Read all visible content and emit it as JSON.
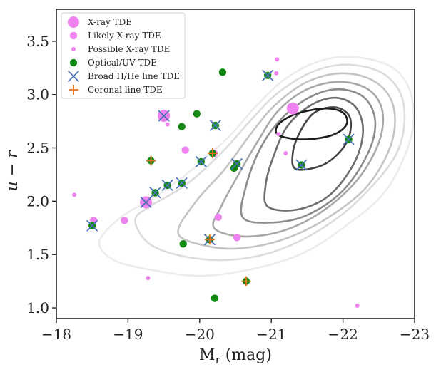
{
  "chart_data": {
    "type": "scatter",
    "title": "",
    "xlabel": "M_r (mag)",
    "xlabel_main": "M",
    "xlabel_sub": "r",
    "xlabel_unit": " (mag)",
    "ylabel": "u − r",
    "xlim": [
      -18,
      -23
    ],
    "ylim": [
      0.9,
      3.8
    ],
    "x_ticks": [
      -18,
      -19,
      -20,
      -21,
      -22,
      -23
    ],
    "x_tick_labels": [
      "−18",
      "−19",
      "−20",
      "−21",
      "−22",
      "−23"
    ],
    "y_ticks": [
      1.0,
      1.5,
      2.0,
      2.5,
      3.0,
      3.5
    ],
    "y_tick_labels": [
      "1.0",
      "1.5",
      "2.0",
      "2.5",
      "3.0",
      "3.5"
    ],
    "grid": false,
    "legend_position": "top-left",
    "colors": {
      "xray": "#ee82ee",
      "optical": "#118811",
      "broad": "#4a72b8",
      "coronal": "#e07020"
    },
    "legend": [
      {
        "label": "X-ray TDE",
        "marker": "circle-large",
        "color": "#ee82ee"
      },
      {
        "label": "Likely X-ray TDE",
        "marker": "circle-medium",
        "color": "#ee82ee"
      },
      {
        "label": "Possible X-ray TDE",
        "marker": "circle-small",
        "color": "#ee82ee"
      },
      {
        "label": "Optical/UV TDE",
        "marker": "circle-medium",
        "color": "#118811"
      },
      {
        "label": "Broad H/He line TDE",
        "marker": "x",
        "color": "#4a72b8"
      },
      {
        "label": "Coronal line TDE",
        "marker": "plus",
        "color": "#e07020"
      }
    ],
    "series": [
      {
        "name": "X-ray TDE",
        "points": [
          [
            -19.25,
            1.99
          ],
          [
            -19.5,
            2.8
          ],
          [
            -21.3,
            2.87
          ]
        ]
      },
      {
        "name": "Likely X-ray TDE",
        "points": [
          [
            -18.52,
            1.82
          ],
          [
            -18.95,
            1.82
          ],
          [
            -19.8,
            2.48
          ],
          [
            -20.26,
            1.85
          ],
          [
            -20.52,
            1.66
          ],
          [
            -20.2,
            2.45
          ]
        ]
      },
      {
        "name": "Possible X-ray TDE",
        "points": [
          [
            -18.25,
            2.06
          ],
          [
            -19.28,
            1.28
          ],
          [
            -19.55,
            2.72
          ],
          [
            -21.08,
            3.33
          ],
          [
            -21.07,
            3.2
          ],
          [
            -21.1,
            2.63
          ],
          [
            -21.2,
            2.45
          ],
          [
            -22.2,
            1.02
          ]
        ]
      },
      {
        "name": "Optical/UV TDE",
        "points": [
          [
            -18.5,
            1.77
          ],
          [
            -19.32,
            2.38
          ],
          [
            -19.38,
            2.08
          ],
          [
            -19.55,
            2.15
          ],
          [
            -19.75,
            2.17
          ],
          [
            -19.75,
            2.7
          ],
          [
            -19.77,
            1.6
          ],
          [
            -19.96,
            2.82
          ],
          [
            -20.02,
            2.37
          ],
          [
            -20.14,
            1.64
          ],
          [
            -20.18,
            2.45
          ],
          [
            -20.22,
            2.71
          ],
          [
            -20.21,
            1.09
          ],
          [
            -20.32,
            3.21
          ],
          [
            -20.48,
            2.31
          ],
          [
            -20.52,
            2.35
          ],
          [
            -20.65,
            1.25
          ],
          [
            -20.95,
            3.18
          ],
          [
            -21.42,
            2.34
          ],
          [
            -22.08,
            2.58
          ]
        ]
      },
      {
        "name": "Broad H/He line TDE",
        "points": [
          [
            -18.5,
            1.77
          ],
          [
            -19.25,
            1.99
          ],
          [
            -19.38,
            2.08
          ],
          [
            -19.5,
            2.8
          ],
          [
            -19.55,
            2.15
          ],
          [
            -19.75,
            2.17
          ],
          [
            -20.02,
            2.37
          ],
          [
            -20.14,
            1.64
          ],
          [
            -20.22,
            2.71
          ],
          [
            -20.52,
            2.35
          ],
          [
            -20.95,
            3.18
          ],
          [
            -21.42,
            2.34
          ],
          [
            -22.08,
            2.58
          ]
        ]
      },
      {
        "name": "Coronal line TDE",
        "points": [
          [
            -19.32,
            2.38
          ],
          [
            -20.14,
            1.64
          ],
          [
            -20.18,
            2.45
          ],
          [
            -20.65,
            1.25
          ]
        ]
      }
    ],
    "contours": [
      {
        "level": 1,
        "color": "#ececec",
        "points": [
          [
            -18.6,
            1.62
          ],
          [
            -18.8,
            1.45
          ],
          [
            -19.3,
            1.36
          ],
          [
            -20,
            1.3
          ],
          [
            -20.7,
            1.36
          ],
          [
            -21.4,
            1.5
          ],
          [
            -22,
            1.75
          ],
          [
            -22.6,
            2.1
          ],
          [
            -22.95,
            2.6
          ],
          [
            -22.95,
            3.0
          ],
          [
            -22.7,
            3.25
          ],
          [
            -22.2,
            3.35
          ],
          [
            -21.7,
            3.32
          ],
          [
            -21.2,
            3.15
          ],
          [
            -20.8,
            2.9
          ],
          [
            -20.4,
            2.6
          ],
          [
            -19.9,
            2.3
          ],
          [
            -19.4,
            2.05
          ],
          [
            -18.9,
            1.85
          ]
        ]
      },
      {
        "level": 2,
        "color": "#dcdcdc",
        "points": [
          [
            -19.1,
            1.82
          ],
          [
            -19.3,
            1.6
          ],
          [
            -19.8,
            1.48
          ],
          [
            -20.4,
            1.45
          ],
          [
            -21,
            1.52
          ],
          [
            -21.6,
            1.7
          ],
          [
            -22.2,
            2.0
          ],
          [
            -22.75,
            2.45
          ],
          [
            -22.85,
            2.9
          ],
          [
            -22.6,
            3.18
          ],
          [
            -22.1,
            3.28
          ],
          [
            -21.6,
            3.22
          ],
          [
            -21.1,
            3.02
          ],
          [
            -20.7,
            2.75
          ],
          [
            -20.3,
            2.45
          ],
          [
            -19.8,
            2.15
          ],
          [
            -19.3,
            1.95
          ]
        ]
      },
      {
        "level": 3,
        "color": "#c4c4c4",
        "points": [
          [
            -19.7,
            1.7
          ],
          [
            -20.1,
            1.58
          ],
          [
            -20.6,
            1.56
          ],
          [
            -21.2,
            1.65
          ],
          [
            -21.8,
            1.85
          ],
          [
            -22.35,
            2.15
          ],
          [
            -22.68,
            2.55
          ],
          [
            -22.7,
            2.9
          ],
          [
            -22.45,
            3.12
          ],
          [
            -22,
            3.2
          ],
          [
            -21.5,
            3.12
          ],
          [
            -21.05,
            2.9
          ],
          [
            -20.7,
            2.62
          ],
          [
            -20.35,
            2.3
          ],
          [
            -19.95,
            2.0
          ]
        ]
      },
      {
        "level": 4,
        "color": "#a8a8a8",
        "points": [
          [
            -20.2,
            1.75
          ],
          [
            -20.6,
            1.67
          ],
          [
            -21.15,
            1.72
          ],
          [
            -21.7,
            1.9
          ],
          [
            -22.2,
            2.2
          ],
          [
            -22.5,
            2.55
          ],
          [
            -22.55,
            2.85
          ],
          [
            -22.35,
            3.05
          ],
          [
            -21.95,
            3.12
          ],
          [
            -21.5,
            3.05
          ],
          [
            -21.1,
            2.85
          ],
          [
            -20.8,
            2.55
          ],
          [
            -20.5,
            2.2
          ],
          [
            -20.3,
            1.95
          ]
        ]
      },
      {
        "level": 5,
        "color": "#8c8c8c",
        "points": [
          [
            -20.6,
            1.85
          ],
          [
            -21,
            1.8
          ],
          [
            -21.5,
            1.87
          ],
          [
            -22,
            2.1
          ],
          [
            -22.35,
            2.45
          ],
          [
            -22.45,
            2.75
          ],
          [
            -22.3,
            2.97
          ],
          [
            -21.95,
            3.05
          ],
          [
            -21.55,
            2.98
          ],
          [
            -21.15,
            2.78
          ],
          [
            -20.85,
            2.5
          ],
          [
            -20.65,
            2.15
          ]
        ]
      },
      {
        "level": 6,
        "color": "#6e6e6e",
        "points": [
          [
            -20.95,
            1.95
          ],
          [
            -21.35,
            1.92
          ],
          [
            -21.8,
            2.05
          ],
          [
            -22.15,
            2.35
          ],
          [
            -22.28,
            2.65
          ],
          [
            -22.18,
            2.88
          ],
          [
            -21.9,
            2.97
          ],
          [
            -21.55,
            2.9
          ],
          [
            -21.22,
            2.7
          ],
          [
            -21.02,
            2.4
          ],
          [
            -20.92,
            2.15
          ]
        ]
      },
      {
        "level": 7,
        "color": "#444444",
        "points": [
          [
            -21.35,
            2.3
          ],
          [
            -21.75,
            2.35
          ],
          [
            -22.05,
            2.55
          ],
          [
            -22.1,
            2.78
          ],
          [
            -21.9,
            2.88
          ],
          [
            -21.6,
            2.83
          ],
          [
            -21.4,
            2.65
          ],
          [
            -21.3,
            2.45
          ]
        ]
      },
      {
        "level": 8,
        "color": "#1e1e1e",
        "points": [
          [
            -21.1,
            2.62
          ],
          [
            -21.45,
            2.58
          ],
          [
            -21.85,
            2.62
          ],
          [
            -22.05,
            2.72
          ],
          [
            -22.0,
            2.83
          ],
          [
            -21.75,
            2.87
          ],
          [
            -21.35,
            2.82
          ],
          [
            -21.1,
            2.72
          ]
        ]
      }
    ]
  }
}
